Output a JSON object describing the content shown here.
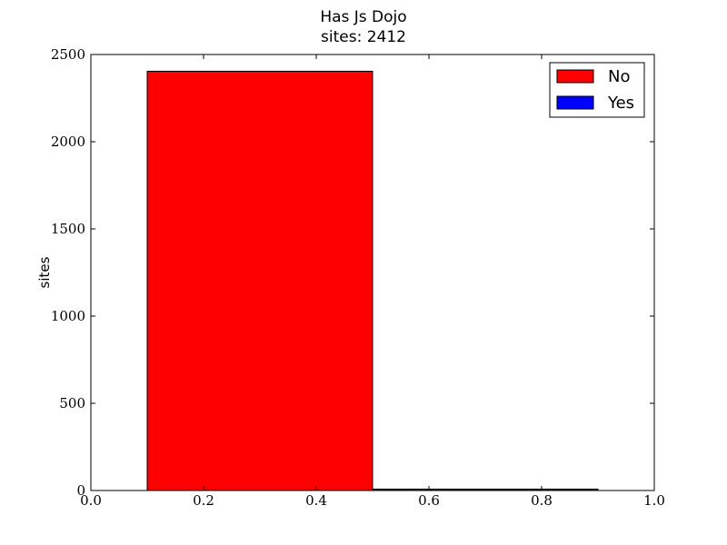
{
  "chart_data": {
    "type": "bar",
    "title": "Has Js Dojo",
    "subtitle": "sites: 2412",
    "xlabel": "",
    "ylabel": "sites",
    "xlim": [
      0.0,
      1.0
    ],
    "ylim": [
      0,
      2500
    ],
    "x_ticks": [
      0.0,
      0.2,
      0.4,
      0.6,
      0.8,
      1.0
    ],
    "x_tick_labels": [
      "0.0",
      "0.2",
      "0.4",
      "0.6",
      "0.8",
      "1.0"
    ],
    "y_ticks": [
      0,
      500,
      1000,
      1500,
      2000,
      2500
    ],
    "y_tick_labels": [
      "0",
      "500",
      "1000",
      "1500",
      "2000",
      "2500"
    ],
    "grid": false,
    "legend_position": "top-right",
    "series": [
      {
        "name": "No",
        "color": "#ff0000",
        "bars": [
          {
            "x_start": 0.1,
            "x_end": 0.5,
            "value": 2404
          }
        ]
      },
      {
        "name": "Yes",
        "color": "#0000ff",
        "bars": [
          {
            "x_start": 0.5,
            "x_end": 0.9,
            "value": 8
          }
        ]
      }
    ]
  }
}
